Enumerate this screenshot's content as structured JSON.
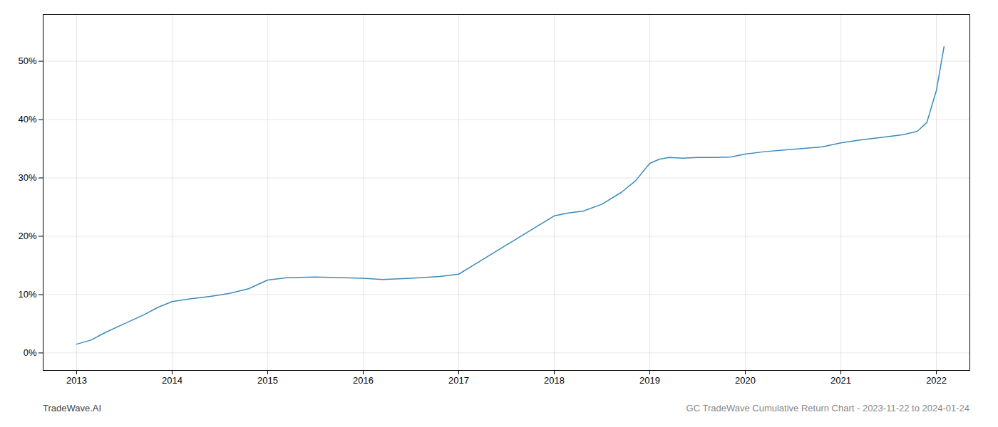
{
  "chart_data": {
    "type": "line",
    "x": [
      2013.0,
      2013.15,
      2013.3,
      2013.5,
      2013.7,
      2013.85,
      2014.0,
      2014.2,
      2014.4,
      2014.6,
      2014.8,
      2015.0,
      2015.2,
      2015.5,
      2015.8,
      2016.0,
      2016.2,
      2016.5,
      2016.8,
      2017.0,
      2017.2,
      2017.4,
      2017.6,
      2017.8,
      2018.0,
      2018.15,
      2018.3,
      2018.5,
      2018.7,
      2018.85,
      2019.0,
      2019.1,
      2019.2,
      2019.35,
      2019.5,
      2019.7,
      2019.85,
      2020.0,
      2020.2,
      2020.5,
      2020.8,
      2021.0,
      2021.2,
      2021.4,
      2021.55,
      2021.65,
      2021.8,
      2021.9,
      2022.0,
      2022.08
    ],
    "values": [
      1.5,
      2.2,
      3.5,
      5.0,
      6.5,
      7.8,
      8.8,
      9.3,
      9.7,
      10.2,
      11.0,
      12.5,
      12.9,
      13.0,
      12.9,
      12.8,
      12.6,
      12.8,
      13.1,
      13.5,
      15.5,
      17.5,
      19.5,
      21.5,
      23.5,
      24.0,
      24.3,
      25.5,
      27.5,
      29.5,
      32.5,
      33.2,
      33.5,
      33.4,
      33.5,
      33.5,
      33.6,
      34.1,
      34.5,
      34.9,
      35.3,
      36.0,
      36.5,
      36.9,
      37.2,
      37.4,
      38.0,
      39.5,
      45.0,
      52.5
    ],
    "color": "#3a8bbf",
    "xlim": [
      2012.65,
      2022.35
    ],
    "ylim": [
      -3,
      58
    ],
    "xticks": [
      2013,
      2014,
      2015,
      2016,
      2017,
      2018,
      2019,
      2020,
      2021,
      2022
    ],
    "yticks": [
      {
        "value": 0,
        "label": "0%"
      },
      {
        "value": 10,
        "label": "10%"
      },
      {
        "value": 20,
        "label": "20%"
      },
      {
        "value": 30,
        "label": "30%"
      },
      {
        "value": 40,
        "label": "40%"
      },
      {
        "value": 50,
        "label": "50%"
      }
    ],
    "grid": true,
    "annotations": [
      "TradeWave.AI",
      "GC TradeWave Cumulative Return Chart - 2023-11-22 to 2024-01-24"
    ]
  }
}
